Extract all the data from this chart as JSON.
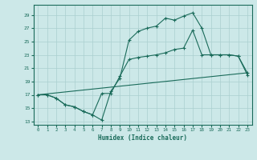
{
  "xlabel": "Humidex (Indice chaleur)",
  "bg_color": "#cce8e8",
  "grid_color": "#aacfcf",
  "line_color": "#1a6b5a",
  "xlim": [
    -0.5,
    23.5
  ],
  "ylim": [
    12.5,
    30.5
  ],
  "yticks": [
    13,
    15,
    17,
    19,
    21,
    23,
    25,
    27,
    29
  ],
  "xticks": [
    0,
    1,
    2,
    3,
    4,
    5,
    6,
    7,
    8,
    9,
    10,
    11,
    12,
    13,
    14,
    15,
    16,
    17,
    18,
    19,
    20,
    21,
    22,
    23
  ],
  "line1_x": [
    0,
    1,
    2,
    3,
    4,
    5,
    6,
    7,
    8,
    9,
    10,
    11,
    12,
    13,
    14,
    15,
    16,
    17,
    18,
    19,
    20,
    21,
    22,
    23
  ],
  "line1_y": [
    17,
    17,
    16.5,
    15.5,
    15.2,
    14.5,
    14.0,
    13.2,
    17.5,
    19.5,
    25.2,
    26.5,
    27.0,
    27.3,
    28.5,
    28.2,
    28.8,
    29.3,
    27.0,
    23.0,
    23.0,
    23.0,
    22.8,
    20.0
  ],
  "line2_x": [
    0,
    1,
    2,
    3,
    4,
    5,
    6,
    7,
    8,
    9,
    10,
    11,
    12,
    13,
    14,
    15,
    16,
    17,
    18,
    19,
    20,
    21,
    22,
    23
  ],
  "line2_y": [
    17,
    17,
    16.5,
    15.5,
    15.2,
    14.5,
    14.0,
    17.2,
    17.2,
    19.8,
    22.3,
    22.6,
    22.8,
    23.0,
    23.3,
    23.8,
    24.0,
    26.7,
    23.0,
    23.0,
    23.0,
    23.0,
    22.8,
    20.3
  ],
  "line3_x": [
    0,
    23
  ],
  "line3_y": [
    17,
    20.3
  ]
}
